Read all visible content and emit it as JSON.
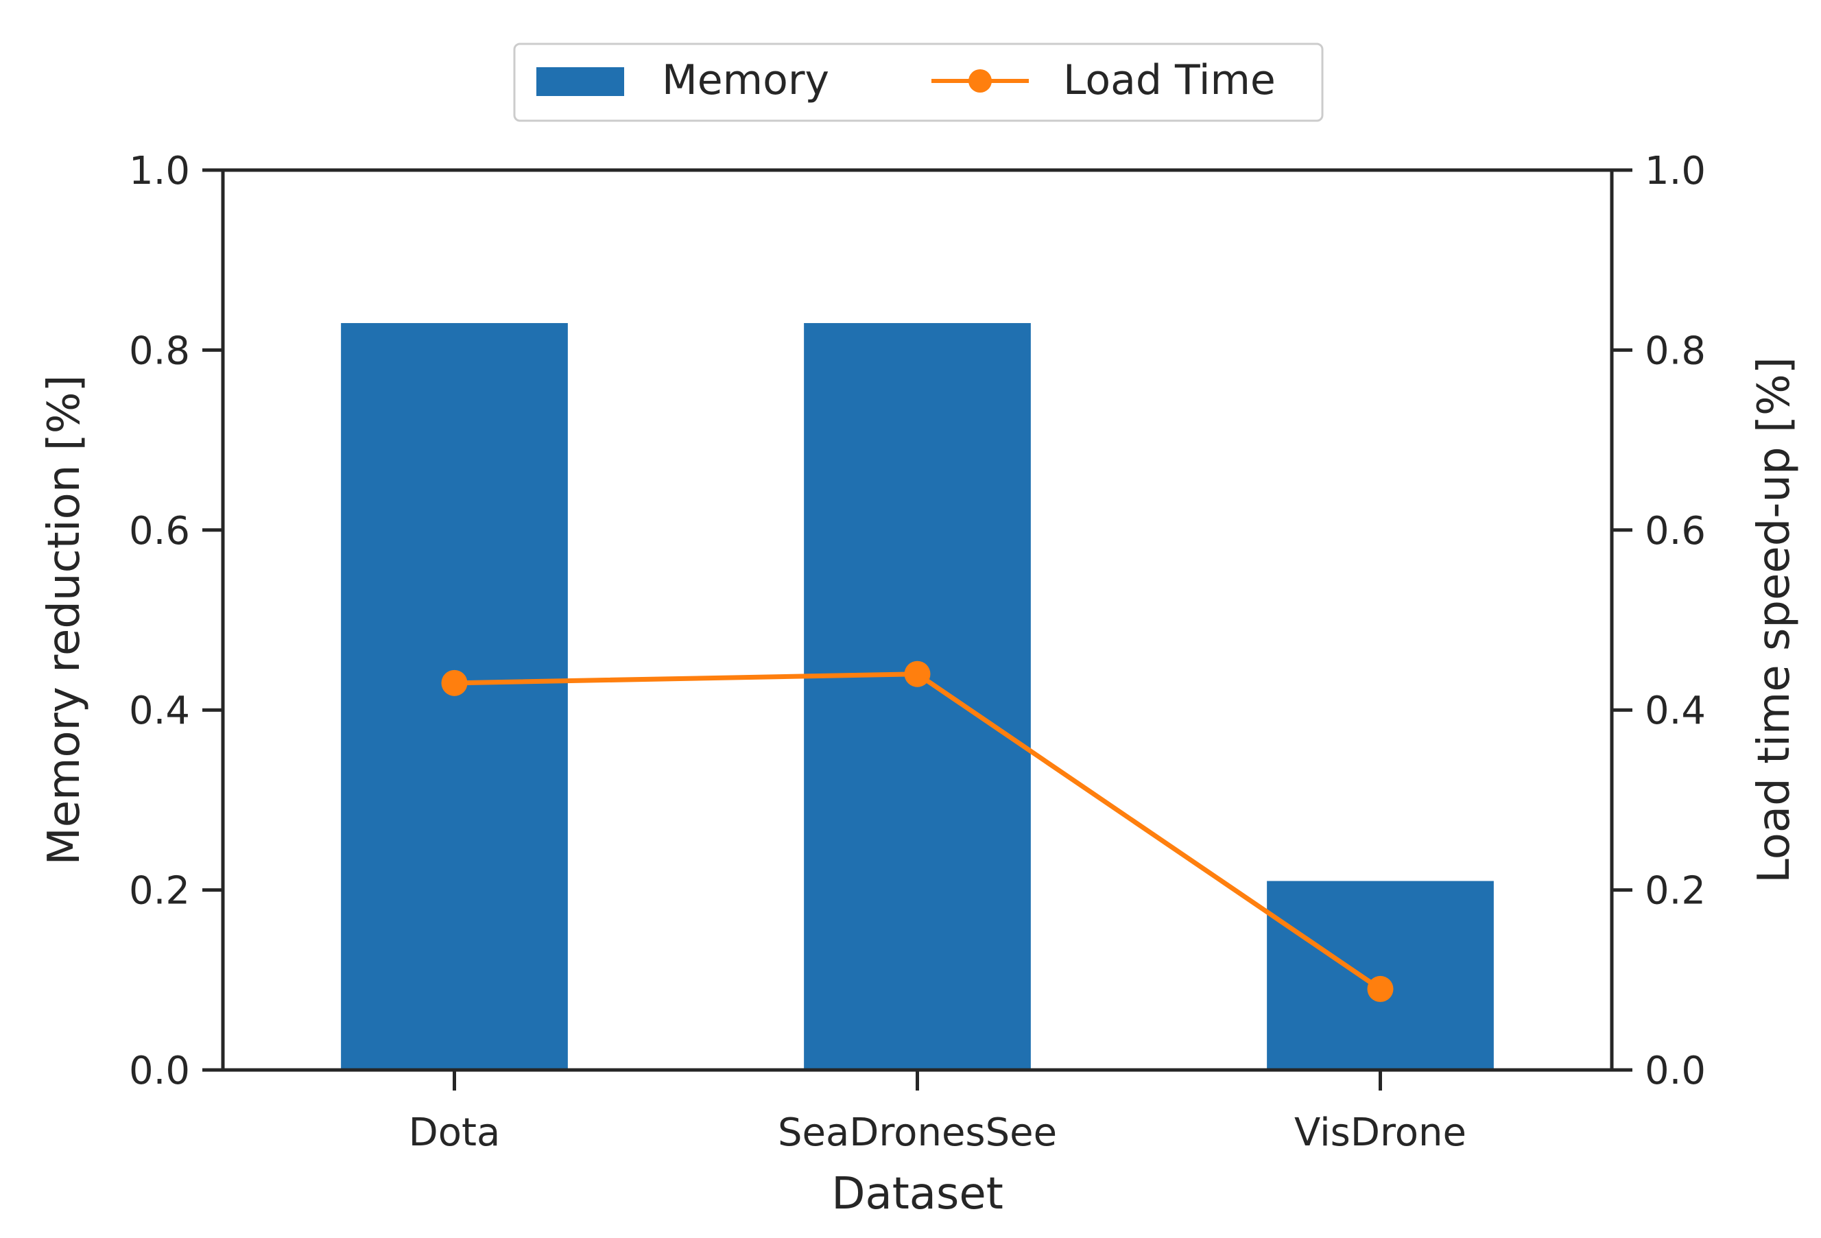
{
  "chart_data": {
    "type": "bar",
    "categories": [
      "Dota",
      "SeaDronesSee",
      "VisDrone"
    ],
    "series": [
      {
        "name": "Memory",
        "kind": "bar",
        "axis": "left",
        "color": "#2070b0",
        "values": [
          0.83,
          0.83,
          0.21
        ]
      },
      {
        "name": "Load Time",
        "kind": "line",
        "axis": "right",
        "marker": "circle",
        "color": "#ff7f0e",
        "values": [
          0.43,
          0.44,
          0.09
        ]
      }
    ],
    "xlabel": "Dataset",
    "ylabel": "Memory reduction [%]",
    "y2label": "Load time speed-up [%]",
    "ylim": [
      0,
      1.0
    ],
    "y2lim": [
      0,
      1.0
    ],
    "yticks": [
      "0.0",
      "0.2",
      "0.4",
      "0.6",
      "0.8",
      "1.0"
    ],
    "y2ticks": [
      "0.0",
      "0.2",
      "0.4",
      "0.6",
      "0.8",
      "1.0"
    ],
    "legend": {
      "placement": "top-center",
      "entries": [
        "Memory",
        "Load Time"
      ]
    },
    "grid": false
  }
}
